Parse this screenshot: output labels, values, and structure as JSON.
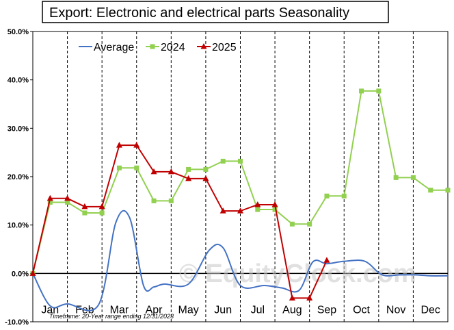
{
  "title": "Export: Electronic and electrical parts Seasonality",
  "footnote": "Timeframe: 20-Year range ending 12/31/2023",
  "watermark": "© EquityClock.com",
  "chart_data": {
    "type": "line",
    "title": "Export: Electronic and electrical parts Seasonality",
    "ylim": [
      -10,
      50
    ],
    "y_ticks": [
      "-10.0%",
      "0.0%",
      "10.0%",
      "20.0%",
      "30.0%",
      "40.0%",
      "50.0%"
    ],
    "categories": [
      "Jan",
      "Feb",
      "Mar",
      "Apr",
      "May",
      "Jun",
      "Jul",
      "Aug",
      "Sep",
      "Oct",
      "Nov",
      "Dec"
    ],
    "grid": "vertical dashed month separators",
    "legend_position": "top-left",
    "series": [
      {
        "name": "Average",
        "color": "#4472c4",
        "smooth": true,
        "x": [
          0,
          0.5,
          1.0,
          1.9,
          2.4,
          2.8,
          3.2,
          3.5,
          3.8,
          4.5,
          5.1,
          5.5,
          6.0,
          6.7,
          7.2,
          7.7,
          8.1,
          8.5,
          9.0,
          9.6,
          10.1,
          10.6,
          11.1,
          11.5,
          12.0
        ],
        "values": [
          0,
          -6.7,
          -6.3,
          -6.5,
          10.5,
          11.5,
          -2.5,
          -2.8,
          -2.2,
          -2.2,
          4.8,
          5.3,
          -2.5,
          -2.5,
          -3.0,
          -3.5,
          2.4,
          2.0,
          2.5,
          2.5,
          -0.3,
          -0.3,
          -0.3,
          -0.5,
          -0.5
        ]
      },
      {
        "name": "2024",
        "color": "#92d050",
        "marker": "square",
        "x": [
          0,
          0.5,
          1.0,
          1.5,
          2.0,
          2.5,
          3.0,
          3.5,
          4.0,
          4.5,
          5.0,
          5.5,
          6.0,
          6.5,
          7.0,
          7.5,
          8.0,
          8.5,
          9.0,
          9.5,
          10.0,
          10.5,
          11.0,
          11.5,
          12.0
        ],
        "values": [
          0,
          14.7,
          14.7,
          12.5,
          12.5,
          21.8,
          21.8,
          15.0,
          15.0,
          21.5,
          21.5,
          23.2,
          23.2,
          13.2,
          13.2,
          10.2,
          10.2,
          16.0,
          16.0,
          37.7,
          37.7,
          19.8,
          19.8,
          17.2,
          17.2
        ]
      },
      {
        "name": "2025",
        "color": "#c00000",
        "marker": "triangle",
        "x": [
          0,
          0.5,
          1.0,
          1.5,
          2.0,
          2.5,
          3.0,
          3.5,
          4.0,
          4.5,
          5.0,
          5.5,
          6.0,
          6.5,
          7.0,
          7.5,
          8.0,
          8.5
        ],
        "values": [
          0,
          15.5,
          15.5,
          13.8,
          13.8,
          26.5,
          26.5,
          21.0,
          21.0,
          19.6,
          19.6,
          12.9,
          12.9,
          14.2,
          14.2,
          -5.1,
          -5.1,
          2.7
        ]
      }
    ]
  }
}
